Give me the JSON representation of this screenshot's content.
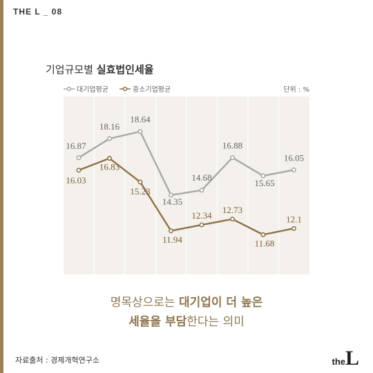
{
  "brand": "THE L _ 08",
  "title_plain": "기업규모별 ",
  "title_bold": "실효법인세율",
  "unit": "단위 : %",
  "legend": [
    {
      "name": "대기업평균",
      "color": "#a8a8a8"
    },
    {
      "name": "중소기업평균",
      "color": "#8e7148"
    }
  ],
  "caption": {
    "line1_plain": "명목상으로는 ",
    "line1_bold": "대기업이 더 높은",
    "line2_bold": "세율을 부담",
    "line2_plain": "한다는 의미"
  },
  "source": "자료출처 : 경제개혁연구소",
  "logo": {
    "the": "the",
    "L": "L"
  },
  "chart_data": {
    "type": "line",
    "x": [
      1,
      2,
      3,
      4,
      5,
      6,
      7,
      8
    ],
    "series": [
      {
        "name": "대기업평균",
        "color": "#a8a8a8",
        "values": [
          16.87,
          18.16,
          18.64,
          14.35,
          14.68,
          16.88,
          15.65,
          16.05
        ],
        "labels": [
          "16.87",
          "18.16",
          "18.64",
          "14.35",
          "14.68",
          "16.88",
          "15.65",
          "16.05"
        ]
      },
      {
        "name": "중소기업평균",
        "color": "#8e7148",
        "values": [
          16.03,
          16.83,
          15.23,
          11.94,
          12.34,
          12.73,
          11.68,
          12.1
        ],
        "labels": [
          "16.03",
          "16.83",
          "15.23",
          "11.94",
          "12.34",
          "12.73",
          "11.68",
          "12.1"
        ]
      }
    ],
    "grid": true,
    "legend_position": "top-left"
  }
}
